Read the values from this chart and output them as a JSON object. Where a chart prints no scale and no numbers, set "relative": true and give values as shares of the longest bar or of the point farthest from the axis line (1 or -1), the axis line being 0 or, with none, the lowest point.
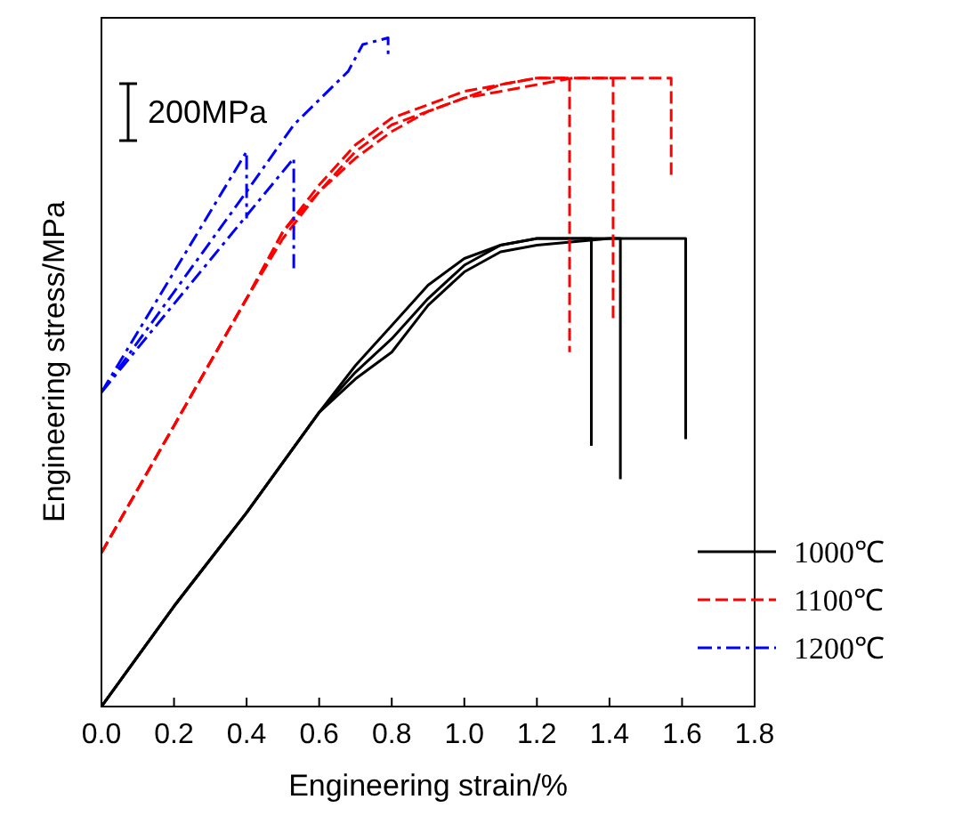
{
  "chart_data": {
    "type": "line",
    "relative": true,
    "xlabel": "Engineering strain/%",
    "ylabel": "Engineering stress/MPa",
    "xlim": [
      0,
      1.8
    ],
    "xticks": [
      {
        "value": 0,
        "label": "0.0"
      },
      0.2,
      0.4,
      0.6,
      0.8,
      {
        "value": 1,
        "label": "1.0"
      },
      1.2,
      1.4,
      1.6,
      1.8
    ],
    "legend": "bottom right",
    "marker": "none",
    "annotations": [
      "200MPa"
    ],
    "series": [
      {
        "name": "1000℃",
        "color": "#000000",
        "line_style": "solid",
        "x": [
          0,
          0.2,
          0.4,
          0.6,
          0.7,
          0.8,
          0.9,
          1.0,
          1.1,
          1.2,
          1.35,
          1.35
        ],
        "values": [
          0,
          0.15,
          0.29,
          0.44,
          0.51,
          0.57,
          0.63,
          0.67,
          0.69,
          0.7,
          0.7,
          0.39
        ]
      },
      {
        "color": "#000000",
        "line_style": "solid",
        "x": [
          0,
          0.2,
          0.4,
          0.6,
          0.7,
          0.8,
          0.9,
          1.0,
          1.1,
          1.2,
          1.43,
          1.43
        ],
        "values": [
          0,
          0.15,
          0.29,
          0.44,
          0.5,
          0.55,
          0.61,
          0.66,
          0.69,
          0.7,
          0.7,
          0.34
        ]
      },
      {
        "color": "#000000",
        "line_style": "solid",
        "x": [
          0,
          0.2,
          0.4,
          0.6,
          0.7,
          0.8,
          0.9,
          1.0,
          1.1,
          1.2,
          1.4,
          1.61,
          1.61
        ],
        "values": [
          0,
          0.15,
          0.29,
          0.44,
          0.49,
          0.53,
          0.6,
          0.65,
          0.68,
          0.69,
          0.7,
          0.7,
          0.4
        ]
      },
      {
        "name": "1100℃",
        "color": "#ff0000",
        "line_style": "dashed",
        "x": [
          0,
          0.2,
          0.4,
          0.5,
          0.6,
          0.7,
          0.8,
          0.9,
          1.0,
          1.1,
          1.2,
          1.29,
          1.29
        ],
        "values": [
          0.23,
          0.42,
          0.61,
          0.71,
          0.78,
          0.84,
          0.88,
          0.9,
          0.92,
          0.93,
          0.94,
          0.94,
          0.53
        ]
      },
      {
        "color": "#ff0000",
        "line_style": "dashed",
        "x": [
          0,
          0.2,
          0.4,
          0.5,
          0.6,
          0.7,
          0.8,
          0.9,
          1.0,
          1.1,
          1.2,
          1.3,
          1.41,
          1.41
        ],
        "values": [
          0.23,
          0.42,
          0.61,
          0.71,
          0.77,
          0.83,
          0.87,
          0.89,
          0.91,
          0.93,
          0.94,
          0.94,
          0.94,
          0.58
        ]
      },
      {
        "color": "#ff0000",
        "line_style": "dashed",
        "x": [
          0,
          0.2,
          0.4,
          0.5,
          0.6,
          0.7,
          0.8,
          0.9,
          1.0,
          1.1,
          1.2,
          1.3,
          1.41,
          1.57,
          1.57
        ],
        "values": [
          0.23,
          0.42,
          0.61,
          0.7,
          0.77,
          0.82,
          0.86,
          0.89,
          0.91,
          0.92,
          0.93,
          0.94,
          0.94,
          0.94,
          0.79
        ]
      },
      {
        "name": "1200℃",
        "color": "#0000ff",
        "line_style": "dashdot",
        "x": [
          0,
          0.4,
          0.4
        ],
        "values": [
          0.47,
          0.83,
          0.73
        ]
      },
      {
        "color": "#0000ff",
        "line_style": "dashdot",
        "x": [
          0,
          0.53,
          0.53
        ],
        "values": [
          0.47,
          0.82,
          0.65
        ]
      },
      {
        "color": "#0000ff",
        "line_style": "dashdot",
        "x": [
          0,
          0.2,
          0.4,
          0.53,
          0.68,
          0.72,
          0.79,
          0.79
        ],
        "values": [
          0.47,
          0.62,
          0.77,
          0.87,
          0.95,
          0.99,
          1,
          0.97
        ]
      }
    ]
  }
}
